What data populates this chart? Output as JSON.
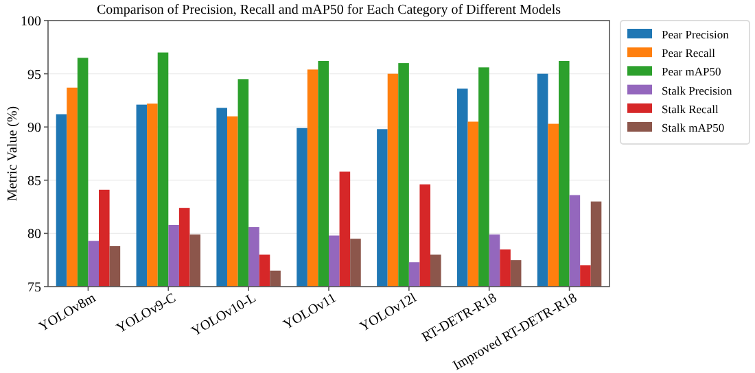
{
  "chart_data": {
    "type": "bar",
    "title": "Comparison of Precision, Recall and mAP50 for Each Category of Different Models",
    "ylabel": "Metric Value (%)",
    "categories": [
      "YOLOv8m",
      "YOLOv9-C",
      "YOLOv10-L",
      "YOLOv11",
      "YOLOv12l",
      "RT-DETR-R18",
      "Improved RT-DETR-R18"
    ],
    "series": [
      {
        "name": "Pear Precision",
        "color": "#1f77b4",
        "values": [
          91.2,
          92.1,
          91.8,
          89.9,
          89.8,
          93.6,
          95.0
        ]
      },
      {
        "name": "Pear Recall",
        "color": "#ff7f0e",
        "values": [
          93.7,
          92.2,
          91.0,
          95.4,
          95.0,
          90.5,
          90.3
        ]
      },
      {
        "name": "Pear mAP50",
        "color": "#2ca02c",
        "values": [
          96.5,
          97.0,
          94.5,
          96.2,
          96.0,
          95.6,
          96.2
        ]
      },
      {
        "name": "Stalk Precision",
        "color": "#9467bd",
        "values": [
          79.3,
          80.8,
          80.6,
          79.8,
          77.3,
          79.9,
          83.6
        ]
      },
      {
        "name": "Stalk Recall",
        "color": "#d62728",
        "values": [
          84.1,
          82.4,
          78.0,
          85.8,
          84.6,
          78.5,
          77.0
        ]
      },
      {
        "name": "Stalk mAP50",
        "color": "#8c564b",
        "values": [
          78.8,
          79.9,
          76.5,
          79.5,
          78.0,
          77.5,
          83.0
        ]
      }
    ],
    "ylim": [
      75,
      100
    ],
    "yticks": [
      75,
      80,
      85,
      90,
      95,
      100
    ],
    "grid": "y",
    "legend": "right"
  }
}
